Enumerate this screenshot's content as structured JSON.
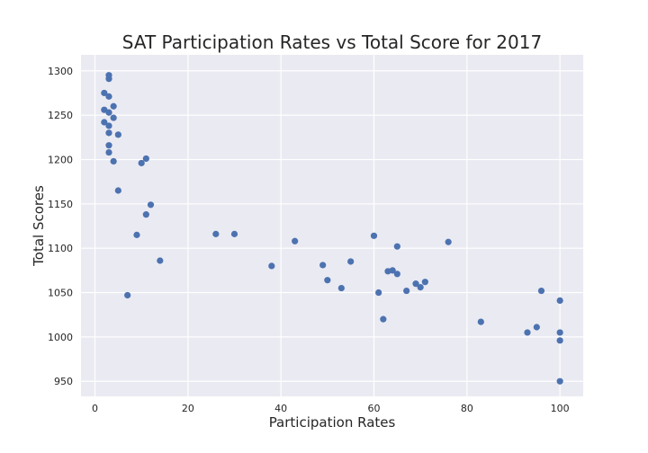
{
  "chart_data": {
    "type": "scatter",
    "title": "SAT Participation Rates vs Total Score for 2017",
    "xlabel": "Participation Rates",
    "ylabel": "Total Scores",
    "xlim": [
      -3,
      105
    ],
    "ylim": [
      933,
      1318
    ],
    "xticks": [
      0,
      20,
      40,
      60,
      80,
      100
    ],
    "yticks": [
      950,
      1000,
      1050,
      1100,
      1150,
      1200,
      1250,
      1300
    ],
    "grid": true,
    "background": "#eaeaf2",
    "marker_color": "#4c72b0",
    "points": [
      {
        "x": 3,
        "y": 1295
      },
      {
        "x": 3,
        "y": 1291
      },
      {
        "x": 2,
        "y": 1275
      },
      {
        "x": 3,
        "y": 1271
      },
      {
        "x": 4,
        "y": 1260
      },
      {
        "x": 2,
        "y": 1256
      },
      {
        "x": 3,
        "y": 1253
      },
      {
        "x": 4,
        "y": 1247
      },
      {
        "x": 2,
        "y": 1242
      },
      {
        "x": 3,
        "y": 1238
      },
      {
        "x": 3,
        "y": 1230
      },
      {
        "x": 5,
        "y": 1228
      },
      {
        "x": 3,
        "y": 1216
      },
      {
        "x": 3,
        "y": 1208
      },
      {
        "x": 11,
        "y": 1201
      },
      {
        "x": 4,
        "y": 1198
      },
      {
        "x": 10,
        "y": 1196
      },
      {
        "x": 5,
        "y": 1165
      },
      {
        "x": 12,
        "y": 1149
      },
      {
        "x": 11,
        "y": 1138
      },
      {
        "x": 26,
        "y": 1116
      },
      {
        "x": 30,
        "y": 1116
      },
      {
        "x": 9,
        "y": 1115
      },
      {
        "x": 60,
        "y": 1114
      },
      {
        "x": 43,
        "y": 1108
      },
      {
        "x": 76,
        "y": 1107
      },
      {
        "x": 65,
        "y": 1102
      },
      {
        "x": 14,
        "y": 1086
      },
      {
        "x": 55,
        "y": 1085
      },
      {
        "x": 38,
        "y": 1080
      },
      {
        "x": 49,
        "y": 1081
      },
      {
        "x": 64,
        "y": 1075
      },
      {
        "x": 63,
        "y": 1074
      },
      {
        "x": 65,
        "y": 1071
      },
      {
        "x": 50,
        "y": 1064
      },
      {
        "x": 71,
        "y": 1062
      },
      {
        "x": 69,
        "y": 1060
      },
      {
        "x": 70,
        "y": 1056
      },
      {
        "x": 53,
        "y": 1055
      },
      {
        "x": 67,
        "y": 1052
      },
      {
        "x": 96,
        "y": 1052
      },
      {
        "x": 61,
        "y": 1050
      },
      {
        "x": 7,
        "y": 1047
      },
      {
        "x": 100,
        "y": 1041
      },
      {
        "x": 62,
        "y": 1020
      },
      {
        "x": 83,
        "y": 1017
      },
      {
        "x": 95,
        "y": 1011
      },
      {
        "x": 93,
        "y": 1005
      },
      {
        "x": 100,
        "y": 1005
      },
      {
        "x": 100,
        "y": 996
      },
      {
        "x": 100,
        "y": 950
      }
    ]
  }
}
